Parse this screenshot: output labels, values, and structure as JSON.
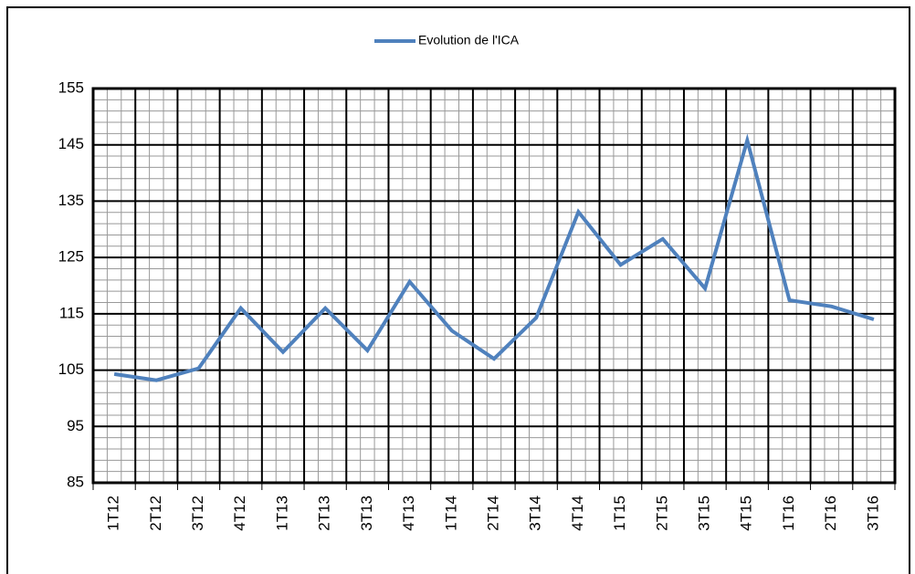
{
  "chart_data": {
    "type": "line",
    "categories": [
      "1T12",
      "2T12",
      "3T12",
      "4T12",
      "1T13",
      "2T13",
      "3T13",
      "4T13",
      "1T14",
      "2T14",
      "3T14",
      "4T14",
      "1T15",
      "2T15",
      "3T15",
      "4T15",
      "1T16",
      "2T16",
      "3T16"
    ],
    "series": [
      {
        "name": "Evolution de l'ICA",
        "color": "#4f81bd",
        "values": [
          104.3,
          103.2,
          105.3,
          116,
          108.2,
          116,
          108.5,
          120.7,
          112,
          107,
          114.3,
          133.1,
          123.7,
          128.3,
          119.5,
          145.8,
          117.4,
          116.3,
          114
        ]
      }
    ],
    "ylim": [
      85,
      155
    ],
    "yticks": [
      85,
      95,
      105,
      115,
      125,
      135,
      145,
      155
    ],
    "grid": true,
    "legend": "top"
  }
}
